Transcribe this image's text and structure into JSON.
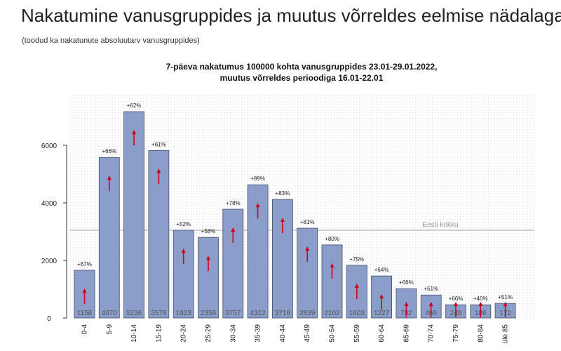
{
  "header": {
    "title": "Nakatumine vanusgruppides ja muutus võrreldes eelmise nädalaga",
    "subtitle": "(toodud ka nakatunute absoluutarv vanusgruppides)"
  },
  "chart_data": {
    "type": "bar",
    "title_line1": "7-päeva nakatumus 100000 kohta vanusgruppides 23.01-29.01.2022,",
    "title_line2": "muutus võrreldes perioodiga 16.01-22.01",
    "categories": [
      "0-4",
      "5-9",
      "10-14",
      "15-19",
      "20-24",
      "25-29",
      "30-34",
      "35-39",
      "40-44",
      "45-49",
      "50-54",
      "55-59",
      "60-64",
      "65-69",
      "70-74",
      "75-79",
      "80-84",
      "üle 85"
    ],
    "values": [
      1660,
      5580,
      7170,
      5820,
      3050,
      2800,
      3780,
      4630,
      4120,
      3120,
      2540,
      1830,
      1460,
      1020,
      800,
      460,
      460,
      510
    ],
    "changes": [
      "+67%",
      "+66%",
      "+62%",
      "+61%",
      "+52%",
      "+58%",
      "+78%",
      "+89%",
      "+83%",
      "+81%",
      "+80%",
      "+75%",
      "+64%",
      "+66%",
      "+51%",
      "+66%",
      "+40%",
      "+51%"
    ],
    "counts": [
      "1158",
      "4070",
      "5236",
      "3578",
      "1923",
      "2359",
      "3757",
      "4312",
      "3718",
      "2839",
      "2102",
      "1603",
      "1227",
      "782",
      "469",
      "248",
      "186",
      "172"
    ],
    "reference_line": {
      "label": "Eesti kokku",
      "value": 3050
    },
    "yticks": [
      0,
      2000,
      4000,
      6000
    ],
    "ylim": [
      0,
      7400
    ],
    "bar_color": "#8b9dc9",
    "arrow_color": "#d0021b"
  }
}
